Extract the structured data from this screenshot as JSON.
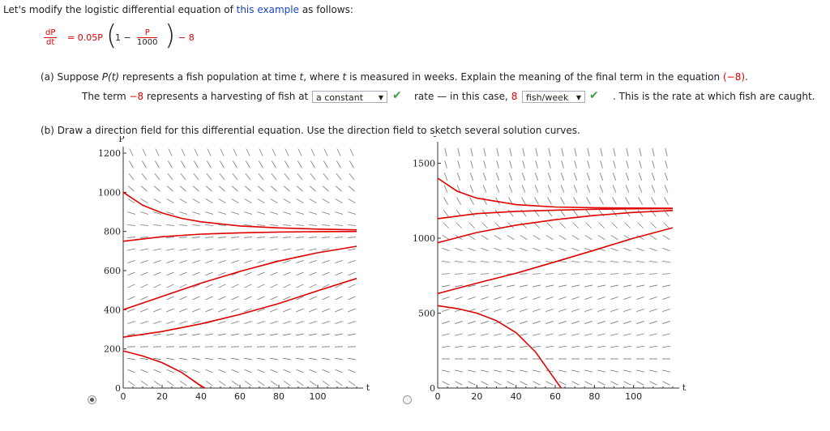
{
  "intro": {
    "before": "Let's modify the logistic differential equation of ",
    "link": "this example",
    "after": " as follows:"
  },
  "equation": {
    "lhs_num": "dP",
    "lhs_den": "dt",
    "eq": "= 0.05P",
    "one_minus": "1 −",
    "inner_num": "P",
    "inner_den": "1000",
    "tail": "− 8"
  },
  "part_a": {
    "question_before": "(a) Suppose ",
    "pt": "P(t)",
    "question_mid": " represents a fish population at time ",
    "t": "t",
    "question_mid2": ", where ",
    "t2": "t",
    "question_after": " is measured in weeks. Explain the meaning of the final term in the equation ",
    "term": "(−8)",
    "question_end": ".",
    "ans_before": "The term ",
    "ans_term": "−8",
    "ans_mid": " represents a harvesting of fish at",
    "dropdown1": "a constant",
    "ans_rate": "rate — in this case, ",
    "ans_eight": "8",
    "dropdown2": "fish/week",
    "ans_end": ". This is the rate at which fish are caught."
  },
  "part_b": {
    "question": "(b) Draw a direction field for this differential equation. Use the direction field to sketch several solution curves."
  },
  "chart_data": [
    {
      "type": "line",
      "title": "",
      "ylabel": "P",
      "xlabel": "t",
      "xlim": [
        0,
        120
      ],
      "ylim": [
        0,
        1200
      ],
      "xticks": [
        0,
        20,
        40,
        60,
        80,
        100
      ],
      "yticks": [
        0,
        200,
        400,
        600,
        800,
        1000,
        1200
      ],
      "grid": false,
      "selected": true,
      "series": [
        {
          "x": [
            0,
            10,
            20,
            30,
            40,
            60,
            80,
            100,
            120
          ],
          "y": [
            1000,
            934,
            894,
            867,
            849,
            828,
            818,
            812,
            808
          ]
        },
        {
          "x": [
            0,
            20,
            40,
            60,
            80,
            100,
            120
          ],
          "y": [
            750,
            773,
            786,
            793,
            797,
            799,
            800
          ]
        },
        {
          "x": [
            0,
            20,
            40,
            60,
            80,
            100,
            120
          ],
          "y": [
            400,
            468,
            536,
            596,
            649,
            691,
            724
          ]
        },
        {
          "x": [
            0,
            20,
            40,
            60,
            80,
            100,
            120
          ],
          "y": [
            260,
            289,
            328,
            376,
            432,
            497,
            560
          ]
        },
        {
          "x": [
            0,
            10,
            20,
            30,
            40,
            42
          ],
          "y": [
            190,
            164,
            130,
            80,
            11,
            0
          ]
        }
      ]
    },
    {
      "type": "line",
      "title": "",
      "ylabel": "P",
      "xlabel": "t",
      "xlim": [
        0,
        120
      ],
      "ylim": [
        0,
        1600
      ],
      "xticks": [
        0,
        20,
        40,
        60,
        80,
        100
      ],
      "yticks": [
        0,
        500,
        1000,
        1500
      ],
      "grid": false,
      "selected": false,
      "series": [
        {
          "x": [
            0,
            10,
            20,
            40,
            60,
            80,
            100,
            120
          ],
          "y": [
            1400,
            1313,
            1267,
            1224,
            1208,
            1203,
            1201,
            1200
          ]
        },
        {
          "x": [
            0,
            20,
            40,
            60,
            80,
            100,
            120
          ],
          "y": [
            1130,
            1164,
            1179,
            1187,
            1193,
            1196,
            1198
          ]
        },
        {
          "x": [
            0,
            20,
            40,
            60,
            80,
            100,
            120
          ],
          "y": [
            970,
            1038,
            1087,
            1123,
            1152,
            1172,
            1185
          ]
        },
        {
          "x": [
            0,
            20,
            40,
            60,
            80,
            100,
            120
          ],
          "y": [
            630,
            700,
            766,
            842,
            920,
            1000,
            1070
          ]
        },
        {
          "x": [
            0,
            10,
            20,
            30,
            40,
            50,
            60,
            63
          ],
          "y": [
            550,
            530,
            500,
            450,
            370,
            240,
            55,
            0
          ]
        }
      ]
    }
  ]
}
